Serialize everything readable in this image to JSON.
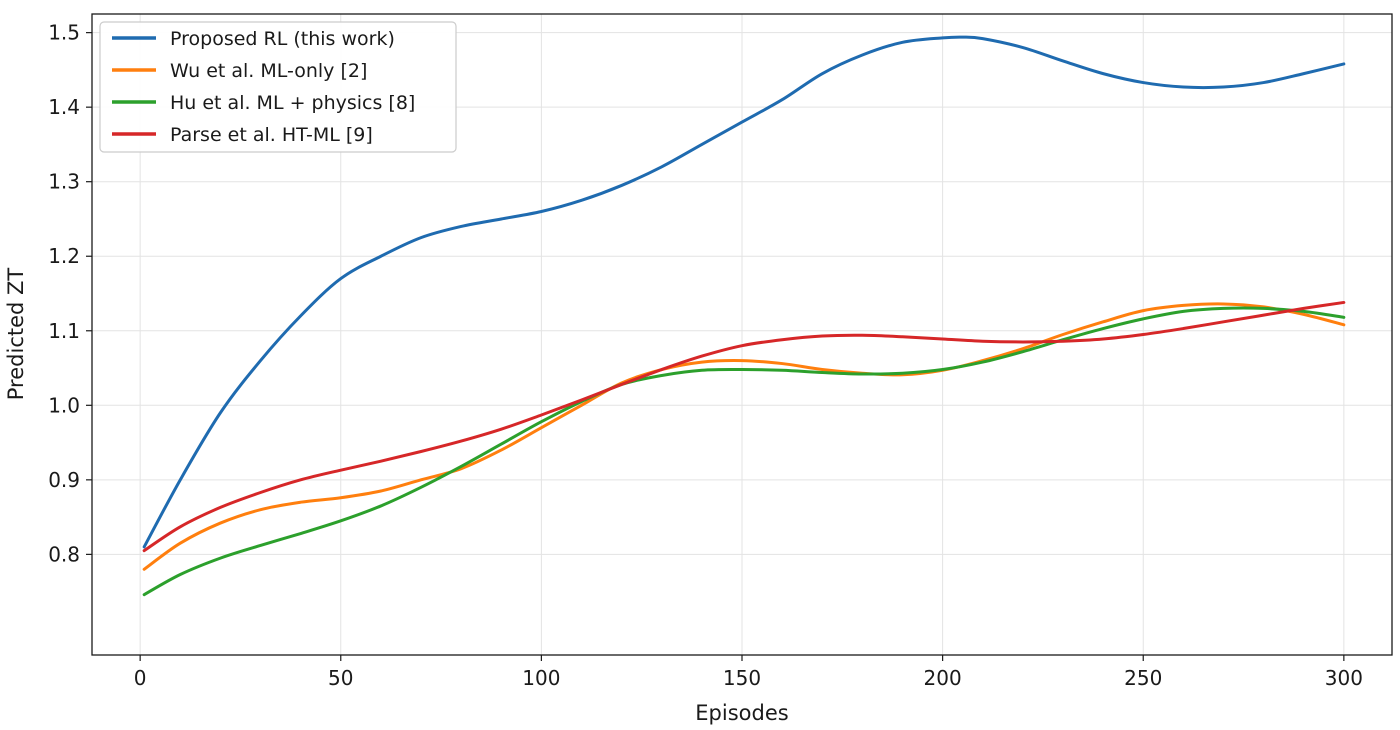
{
  "chart_data": {
    "type": "line",
    "title": "",
    "xlabel": "Episodes",
    "ylabel": "Predicted ZT",
    "xlim": [
      -12,
      312
    ],
    "ylim": [
      0.665,
      1.525
    ],
    "xticks": [
      0,
      50,
      100,
      150,
      200,
      250,
      300
    ],
    "yticks": [
      0.8,
      0.9,
      1.0,
      1.1,
      1.2,
      1.3,
      1.4,
      1.5
    ],
    "xtick_labels": [
      "0",
      "50",
      "100",
      "150",
      "200",
      "250",
      "300"
    ],
    "ytick_labels": [
      "0.8",
      "0.9",
      "1.0",
      "1.1",
      "1.2",
      "1.3",
      "1.4",
      "1.5"
    ],
    "grid": true,
    "legend_position": "top-left",
    "series": [
      {
        "name": "Proposed RL (this work)",
        "color": "#1f6bb0",
        "x": [
          1,
          10,
          20,
          30,
          40,
          50,
          60,
          70,
          80,
          90,
          100,
          110,
          120,
          130,
          140,
          150,
          160,
          170,
          180,
          190,
          200,
          205,
          210,
          220,
          230,
          240,
          250,
          260,
          270,
          280,
          290,
          300
        ],
        "y": [
          0.81,
          0.9,
          0.99,
          1.06,
          1.12,
          1.17,
          1.2,
          1.225,
          1.24,
          1.25,
          1.26,
          1.275,
          1.295,
          1.32,
          1.35,
          1.38,
          1.41,
          1.445,
          1.47,
          1.487,
          1.493,
          1.494,
          1.492,
          1.48,
          1.462,
          1.445,
          1.433,
          1.427,
          1.427,
          1.433,
          1.445,
          1.458
        ]
      },
      {
        "name": "Wu et al. ML-only [2]",
        "color": "#ff7f0e",
        "x": [
          1,
          10,
          20,
          30,
          40,
          50,
          60,
          70,
          80,
          90,
          100,
          110,
          120,
          130,
          140,
          150,
          160,
          170,
          180,
          190,
          200,
          210,
          220,
          230,
          240,
          250,
          260,
          270,
          280,
          290,
          300
        ],
        "y": [
          0.78,
          0.815,
          0.842,
          0.86,
          0.87,
          0.876,
          0.885,
          0.9,
          0.915,
          0.94,
          0.97,
          1.0,
          1.03,
          1.048,
          1.058,
          1.06,
          1.056,
          1.048,
          1.043,
          1.041,
          1.047,
          1.06,
          1.076,
          1.095,
          1.112,
          1.127,
          1.134,
          1.136,
          1.132,
          1.122,
          1.108
        ]
      },
      {
        "name": "Hu et al. ML + physics [8]",
        "color": "#2ca02c",
        "x": [
          1,
          10,
          20,
          30,
          40,
          50,
          60,
          70,
          80,
          90,
          100,
          110,
          120,
          130,
          140,
          150,
          160,
          170,
          180,
          190,
          200,
          210,
          220,
          230,
          240,
          250,
          260,
          270,
          280,
          290,
          300
        ],
        "y": [
          0.746,
          0.773,
          0.795,
          0.812,
          0.828,
          0.845,
          0.865,
          0.89,
          0.918,
          0.948,
          0.978,
          1.005,
          1.028,
          1.04,
          1.047,
          1.048,
          1.047,
          1.044,
          1.042,
          1.043,
          1.048,
          1.058,
          1.072,
          1.088,
          1.103,
          1.116,
          1.126,
          1.13,
          1.13,
          1.126,
          1.118
        ]
      },
      {
        "name": "Parse et al. HT-ML [9]",
        "color": "#d62728",
        "x": [
          1,
          10,
          20,
          30,
          40,
          50,
          60,
          70,
          80,
          90,
          100,
          110,
          120,
          130,
          140,
          150,
          160,
          170,
          180,
          190,
          200,
          210,
          220,
          230,
          240,
          250,
          260,
          270,
          280,
          290,
          300
        ],
        "y": [
          0.805,
          0.837,
          0.863,
          0.883,
          0.9,
          0.913,
          0.925,
          0.938,
          0.952,
          0.968,
          0.987,
          1.007,
          1.028,
          1.048,
          1.066,
          1.08,
          1.088,
          1.093,
          1.094,
          1.092,
          1.089,
          1.086,
          1.085,
          1.086,
          1.089,
          1.095,
          1.103,
          1.112,
          1.121,
          1.13,
          1.138
        ]
      }
    ]
  }
}
